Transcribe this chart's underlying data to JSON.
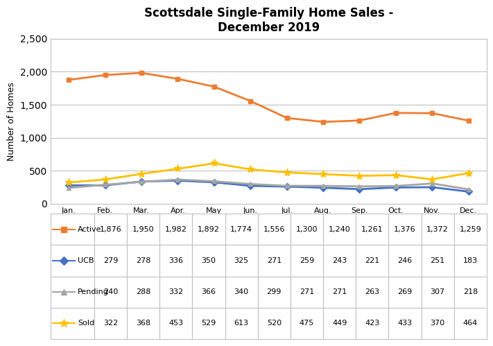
{
  "title": "Scottsdale Single-Family Home Sales -\nDecember 2019",
  "ylabel": "Number of Homes",
  "months": [
    "Jan.\n2019",
    "Feb.\n2019",
    "Mar.\n2019",
    "Apr.\n2019",
    "May\n2019",
    "Jun.\n2019",
    "Jul.\n2019",
    "Aug.\n2019",
    "Sep.\n2019",
    "Oct.\n2019",
    "Nov.\n2019",
    "Dec.\n2019"
  ],
  "active": [
    1876,
    1950,
    1982,
    1892,
    1774,
    1556,
    1300,
    1240,
    1261,
    1376,
    1372,
    1259
  ],
  "ucb": [
    279,
    278,
    336,
    350,
    325,
    271,
    259,
    243,
    221,
    246,
    251,
    183
  ],
  "pending": [
    240,
    288,
    332,
    366,
    340,
    299,
    271,
    271,
    263,
    269,
    307,
    218
  ],
  "sold": [
    322,
    368,
    453,
    529,
    613,
    520,
    475,
    449,
    423,
    433,
    370,
    464
  ],
  "active_color": "#ED7D31",
  "ucb_color": "#4472C4",
  "pending_color": "#A5A5A5",
  "sold_color": "#FFC000",
  "ylim": [
    0,
    2500
  ],
  "yticks": [
    0,
    500,
    1000,
    1500,
    2000,
    2500
  ],
  "table_labels": [
    "Active",
    "UCB",
    "Pending",
    "Sold"
  ],
  "background_color": "#FFFFFF",
  "grid_color": "#C0C0C0"
}
